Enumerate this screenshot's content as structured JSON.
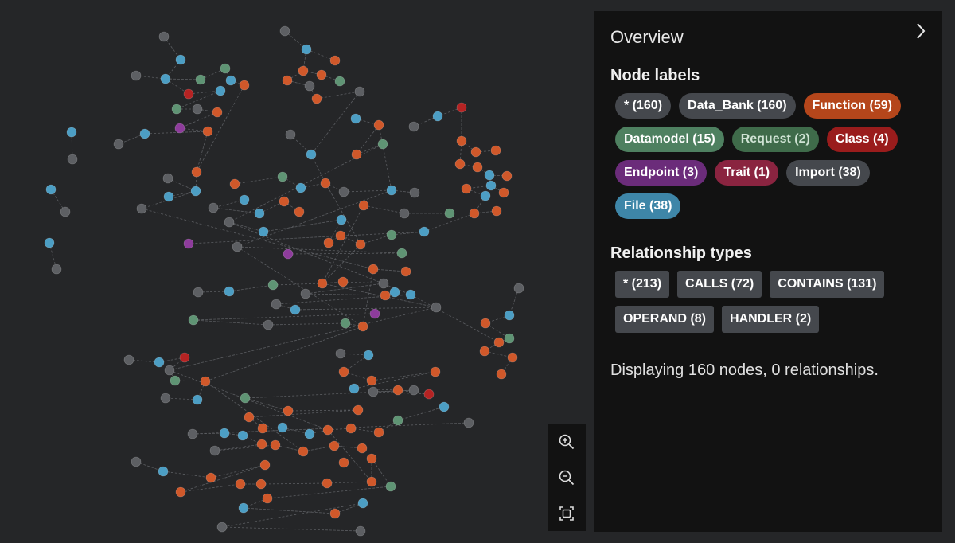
{
  "overview": {
    "title": "Overview",
    "node_labels_title": "Node labels",
    "node_labels": [
      {
        "label": "* (160)",
        "bg": "#45484d",
        "fg": "#ffffff"
      },
      {
        "label": "Data_Bank (160)",
        "bg": "#45484d",
        "fg": "#ffffff"
      },
      {
        "label": "Function (59)",
        "bg": "#b5461b",
        "fg": "#ffffff"
      },
      {
        "label": "Datamodel (15)",
        "bg": "#4e8060",
        "fg": "#ffffff"
      },
      {
        "label": "Request (2)",
        "bg": "#3f6b4a",
        "fg": "#cfe3d4"
      },
      {
        "label": "Class (4)",
        "bg": "#9a1c1c",
        "fg": "#ffffff"
      },
      {
        "label": "Endpoint (3)",
        "bg": "#6b2c7a",
        "fg": "#ffffff"
      },
      {
        "label": "Trait (1)",
        "bg": "#8a2440",
        "fg": "#ffffff"
      },
      {
        "label": "Import (38)",
        "bg": "#45484d",
        "fg": "#ffffff"
      },
      {
        "label": "File (38)",
        "bg": "#3e86a8",
        "fg": "#ffffff"
      }
    ],
    "relationship_types_title": "Relationship types",
    "relationship_types": [
      {
        "label": "* (213)"
      },
      {
        "label": "CALLS (72)"
      },
      {
        "label": "CONTAINS (131)"
      },
      {
        "label": "OPERAND (8)"
      },
      {
        "label": "HANDLER (2)"
      }
    ],
    "status": "Displaying 160 nodes, 0 relationships."
  },
  "zoom_controls": {
    "icons": [
      "zoom-in-icon",
      "zoom-out-icon",
      "fit-screen-icon"
    ]
  },
  "colors": {
    "canvas_bg": "#252628",
    "panel_bg": "#121212",
    "import": "#5d5f63",
    "file": "#4c9ec4",
    "function": "#d0582a",
    "datamodel": "#5f9474",
    "class": "#b52323",
    "endpoint": "#8e3c9c",
    "trait": "#a52d4f",
    "edge": "#5a5c60"
  }
}
